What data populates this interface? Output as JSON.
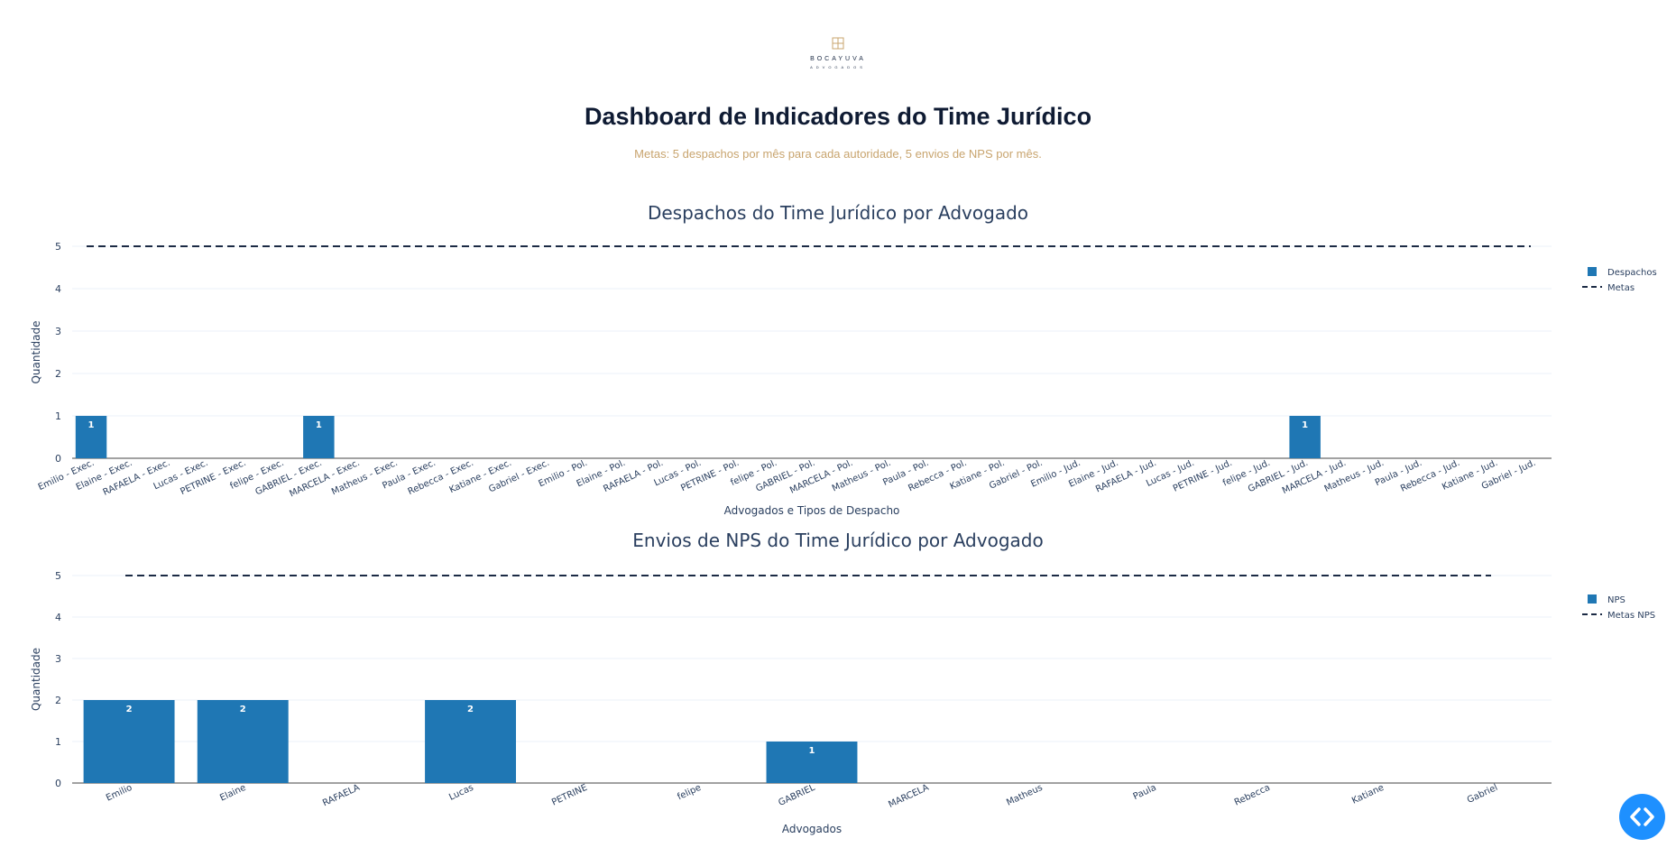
{
  "header": {
    "brand_name": "BOCAYUVA",
    "brand_sub": "ADVOGADOS",
    "title": "Dashboard de Indicadores do Time Jurídico",
    "subtitle": "Metas: 5 despachos por mês para cada autoridade, 5 envios de NPS por mês."
  },
  "colors": {
    "bar": "#1f77b4",
    "target": "#1b2a44",
    "accent": "#c8a46e",
    "fab": "#1e90ff"
  },
  "fab": {
    "icon": "code-icon"
  },
  "chart_data": [
    {
      "type": "bar",
      "title": "Despachos do Time Jurídico por Advogado",
      "xlabel": "Advogados e Tipos de Despacho",
      "ylabel": "Quantidade",
      "ylim": [
        0,
        5
      ],
      "yticks": [
        0,
        1,
        2,
        3,
        4,
        5
      ],
      "grid": true,
      "legend_position": "top-right",
      "categories": [
        "Emilio - Exec.",
        "Elaine - Exec.",
        "RAFAELA - Exec.",
        "Lucas - Exec.",
        "PETRINE - Exec.",
        "felipe - Exec.",
        "GABRIEL - Exec.",
        "MARCELA - Exec.",
        "Matheus - Exec.",
        "Paula - Exec.",
        "Rebecca - Exec.",
        "Katiane - Exec.",
        "Gabriel - Exec.",
        "Emilio - Pol.",
        "Elaine - Pol.",
        "RAFAELA - Pol.",
        "Lucas - Pol.",
        "PETRINE - Pol.",
        "felipe - Pol.",
        "GABRIEL - Pol.",
        "MARCELA - Pol.",
        "Matheus - Pol.",
        "Paula - Pol.",
        "Rebecca - Pol.",
        "Katiane - Pol.",
        "Gabriel - Pol.",
        "Emilio - Jud.",
        "Elaine - Jud.",
        "RAFAELA - Jud.",
        "Lucas - Jud.",
        "PETRINE - Jud.",
        "felipe - Jud.",
        "GABRIEL - Jud.",
        "MARCELA - Jud.",
        "Matheus - Jud.",
        "Paula - Jud.",
        "Rebecca - Jud.",
        "Katiane - Jud.",
        "Gabriel - Jud."
      ],
      "series": [
        {
          "name": "Despachos",
          "kind": "bar",
          "values": [
            1,
            0,
            0,
            0,
            0,
            0,
            1,
            0,
            0,
            0,
            0,
            0,
            0,
            0,
            0,
            0,
            0,
            0,
            0,
            0,
            0,
            0,
            0,
            0,
            0,
            0,
            0,
            0,
            0,
            0,
            0,
            0,
            1,
            0,
            0,
            0,
            0,
            0,
            0
          ]
        },
        {
          "name": "Metas",
          "kind": "dashed-line",
          "values": [
            5,
            5,
            5,
            5,
            5,
            5,
            5,
            5,
            5,
            5,
            5,
            5,
            5,
            5,
            5,
            5,
            5,
            5,
            5,
            5,
            5,
            5,
            5,
            5,
            5,
            5,
            5,
            5,
            5,
            5,
            5,
            5,
            5,
            5,
            5,
            5,
            5,
            5,
            5
          ]
        }
      ]
    },
    {
      "type": "bar",
      "title": "Envios de NPS do Time Jurídico por Advogado",
      "xlabel": "Advogados",
      "ylabel": "Quantidade",
      "ylim": [
        0,
        5
      ],
      "yticks": [
        0,
        1,
        2,
        3,
        4,
        5
      ],
      "grid": true,
      "legend_position": "top-right",
      "categories": [
        "Emilio",
        "Elaine",
        "RAFAELA",
        "Lucas",
        "PETRINE",
        "felipe",
        "GABRIEL",
        "MARCELA",
        "Matheus",
        "Paula",
        "Rebecca",
        "Katiane",
        "Gabriel"
      ],
      "series": [
        {
          "name": "NPS",
          "kind": "bar",
          "values": [
            2,
            2,
            0,
            2,
            0,
            0,
            1,
            0,
            0,
            0,
            0,
            0,
            0
          ]
        },
        {
          "name": "Metas NPS",
          "kind": "dashed-line",
          "values": [
            5,
            5,
            5,
            5,
            5,
            5,
            5,
            5,
            5,
            5,
            5,
            5,
            5
          ]
        }
      ]
    }
  ]
}
